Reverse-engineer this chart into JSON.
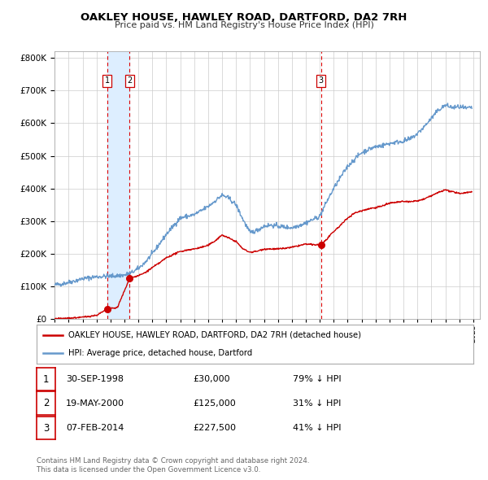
{
  "title": "OAKLEY HOUSE, HAWLEY ROAD, DARTFORD, DA2 7RH",
  "subtitle": "Price paid vs. HM Land Registry's House Price Index (HPI)",
  "legend_label_red": "OAKLEY HOUSE, HAWLEY ROAD, DARTFORD, DA2 7RH (detached house)",
  "legend_label_blue": "HPI: Average price, detached house, Dartford",
  "footer_line1": "Contains HM Land Registry data © Crown copyright and database right 2024.",
  "footer_line2": "This data is licensed under the Open Government Licence v3.0.",
  "transactions": [
    {
      "num": 1,
      "date": "30-SEP-1998",
      "price": 30000,
      "hpi_pct": "79% ↓ HPI",
      "year": 1998.75
    },
    {
      "num": 2,
      "date": "19-MAY-2000",
      "price": 125000,
      "hpi_pct": "31% ↓ HPI",
      "year": 2000.38
    },
    {
      "num": 3,
      "date": "07-FEB-2014",
      "price": 227500,
      "hpi_pct": "41% ↓ HPI",
      "year": 2014.1
    }
  ],
  "red_color": "#cc0000",
  "blue_color": "#6699cc",
  "shade_color": "#ddeeff",
  "vline_color": "#dd0000",
  "grid_color": "#cccccc",
  "bg_color": "#ffffff",
  "ylim": [
    0,
    820000
  ],
  "xlim_start": 1995,
  "xlim_end": 2025.5,
  "yticks": [
    0,
    100000,
    200000,
    300000,
    400000,
    500000,
    600000,
    700000,
    800000
  ],
  "xticks": [
    1995,
    1996,
    1997,
    1998,
    1999,
    2000,
    2001,
    2002,
    2003,
    2004,
    2005,
    2006,
    2007,
    2008,
    2009,
    2010,
    2011,
    2012,
    2013,
    2014,
    2015,
    2016,
    2017,
    2018,
    2019,
    2020,
    2021,
    2022,
    2023,
    2024,
    2025
  ],
  "hpi_anchors": [
    [
      1995.0,
      105000
    ],
    [
      1995.5,
      108000
    ],
    [
      1996.0,
      113000
    ],
    [
      1996.5,
      118000
    ],
    [
      1997.0,
      124000
    ],
    [
      1997.5,
      127000
    ],
    [
      1998.0,
      130000
    ],
    [
      1998.5,
      131000
    ],
    [
      1999.0,
      132000
    ],
    [
      1999.5,
      133000
    ],
    [
      2000.0,
      135000
    ],
    [
      2000.5,
      142000
    ],
    [
      2001.0,
      155000
    ],
    [
      2001.5,
      175000
    ],
    [
      2002.0,
      200000
    ],
    [
      2002.5,
      230000
    ],
    [
      2003.0,
      260000
    ],
    [
      2003.5,
      285000
    ],
    [
      2004.0,
      310000
    ],
    [
      2004.5,
      315000
    ],
    [
      2005.0,
      320000
    ],
    [
      2005.5,
      332000
    ],
    [
      2006.0,
      345000
    ],
    [
      2006.5,
      362000
    ],
    [
      2007.0,
      380000
    ],
    [
      2007.5,
      370000
    ],
    [
      2008.0,
      350000
    ],
    [
      2008.5,
      305000
    ],
    [
      2009.0,
      265000
    ],
    [
      2009.5,
      272000
    ],
    [
      2010.0,
      285000
    ],
    [
      2010.5,
      288000
    ],
    [
      2011.0,
      285000
    ],
    [
      2011.5,
      282000
    ],
    [
      2012.0,
      280000
    ],
    [
      2012.5,
      287000
    ],
    [
      2013.0,
      295000
    ],
    [
      2013.5,
      305000
    ],
    [
      2014.0,
      315000
    ],
    [
      2014.5,
      360000
    ],
    [
      2015.0,
      400000
    ],
    [
      2015.5,
      435000
    ],
    [
      2016.0,
      468000
    ],
    [
      2016.5,
      490000
    ],
    [
      2017.0,
      510000
    ],
    [
      2017.5,
      520000
    ],
    [
      2018.0,
      528000
    ],
    [
      2018.5,
      532000
    ],
    [
      2019.0,
      538000
    ],
    [
      2019.5,
      542000
    ],
    [
      2020.0,
      545000
    ],
    [
      2020.5,
      552000
    ],
    [
      2021.0,
      568000
    ],
    [
      2021.5,
      590000
    ],
    [
      2022.0,
      615000
    ],
    [
      2022.5,
      640000
    ],
    [
      2023.0,
      655000
    ],
    [
      2023.5,
      648000
    ],
    [
      2024.0,
      650000
    ],
    [
      2024.5,
      645000
    ],
    [
      2024.9,
      648000
    ]
  ],
  "red_anchors": [
    [
      1995.0,
      1500
    ],
    [
      1996.0,
      3000
    ],
    [
      1997.0,
      6000
    ],
    [
      1998.0,
      12000
    ],
    [
      1998.75,
      30000
    ],
    [
      1998.76,
      30000
    ],
    [
      1999.0,
      32000
    ],
    [
      1999.5,
      36000
    ],
    [
      2000.38,
      125000
    ],
    [
      2000.5,
      127000
    ],
    [
      2001.0,
      133000
    ],
    [
      2001.5,
      143000
    ],
    [
      2002.0,
      158000
    ],
    [
      2002.5,
      172000
    ],
    [
      2003.0,
      188000
    ],
    [
      2003.5,
      198000
    ],
    [
      2004.0,
      207000
    ],
    [
      2004.5,
      212000
    ],
    [
      2005.0,
      215000
    ],
    [
      2005.5,
      220000
    ],
    [
      2006.0,
      226000
    ],
    [
      2006.5,
      240000
    ],
    [
      2007.0,
      258000
    ],
    [
      2007.5,
      248000
    ],
    [
      2008.0,
      238000
    ],
    [
      2008.5,
      215000
    ],
    [
      2009.0,
      205000
    ],
    [
      2009.5,
      208000
    ],
    [
      2010.0,
      215000
    ],
    [
      2010.5,
      215000
    ],
    [
      2011.0,
      215000
    ],
    [
      2011.5,
      217000
    ],
    [
      2012.0,
      220000
    ],
    [
      2012.5,
      225000
    ],
    [
      2013.0,
      230000
    ],
    [
      2013.5,
      228000
    ],
    [
      2014.1,
      227500
    ],
    [
      2014.5,
      245000
    ],
    [
      2015.0,
      268000
    ],
    [
      2015.5,
      288000
    ],
    [
      2016.0,
      310000
    ],
    [
      2016.5,
      325000
    ],
    [
      2017.0,
      332000
    ],
    [
      2017.5,
      338000
    ],
    [
      2018.0,
      342000
    ],
    [
      2018.5,
      347000
    ],
    [
      2019.0,
      355000
    ],
    [
      2019.5,
      358000
    ],
    [
      2020.0,
      360000
    ],
    [
      2020.5,
      360000
    ],
    [
      2021.0,
      362000
    ],
    [
      2021.5,
      368000
    ],
    [
      2022.0,
      378000
    ],
    [
      2022.5,
      388000
    ],
    [
      2023.0,
      396000
    ],
    [
      2023.5,
      390000
    ],
    [
      2024.0,
      385000
    ],
    [
      2024.5,
      388000
    ],
    [
      2024.9,
      390000
    ]
  ]
}
